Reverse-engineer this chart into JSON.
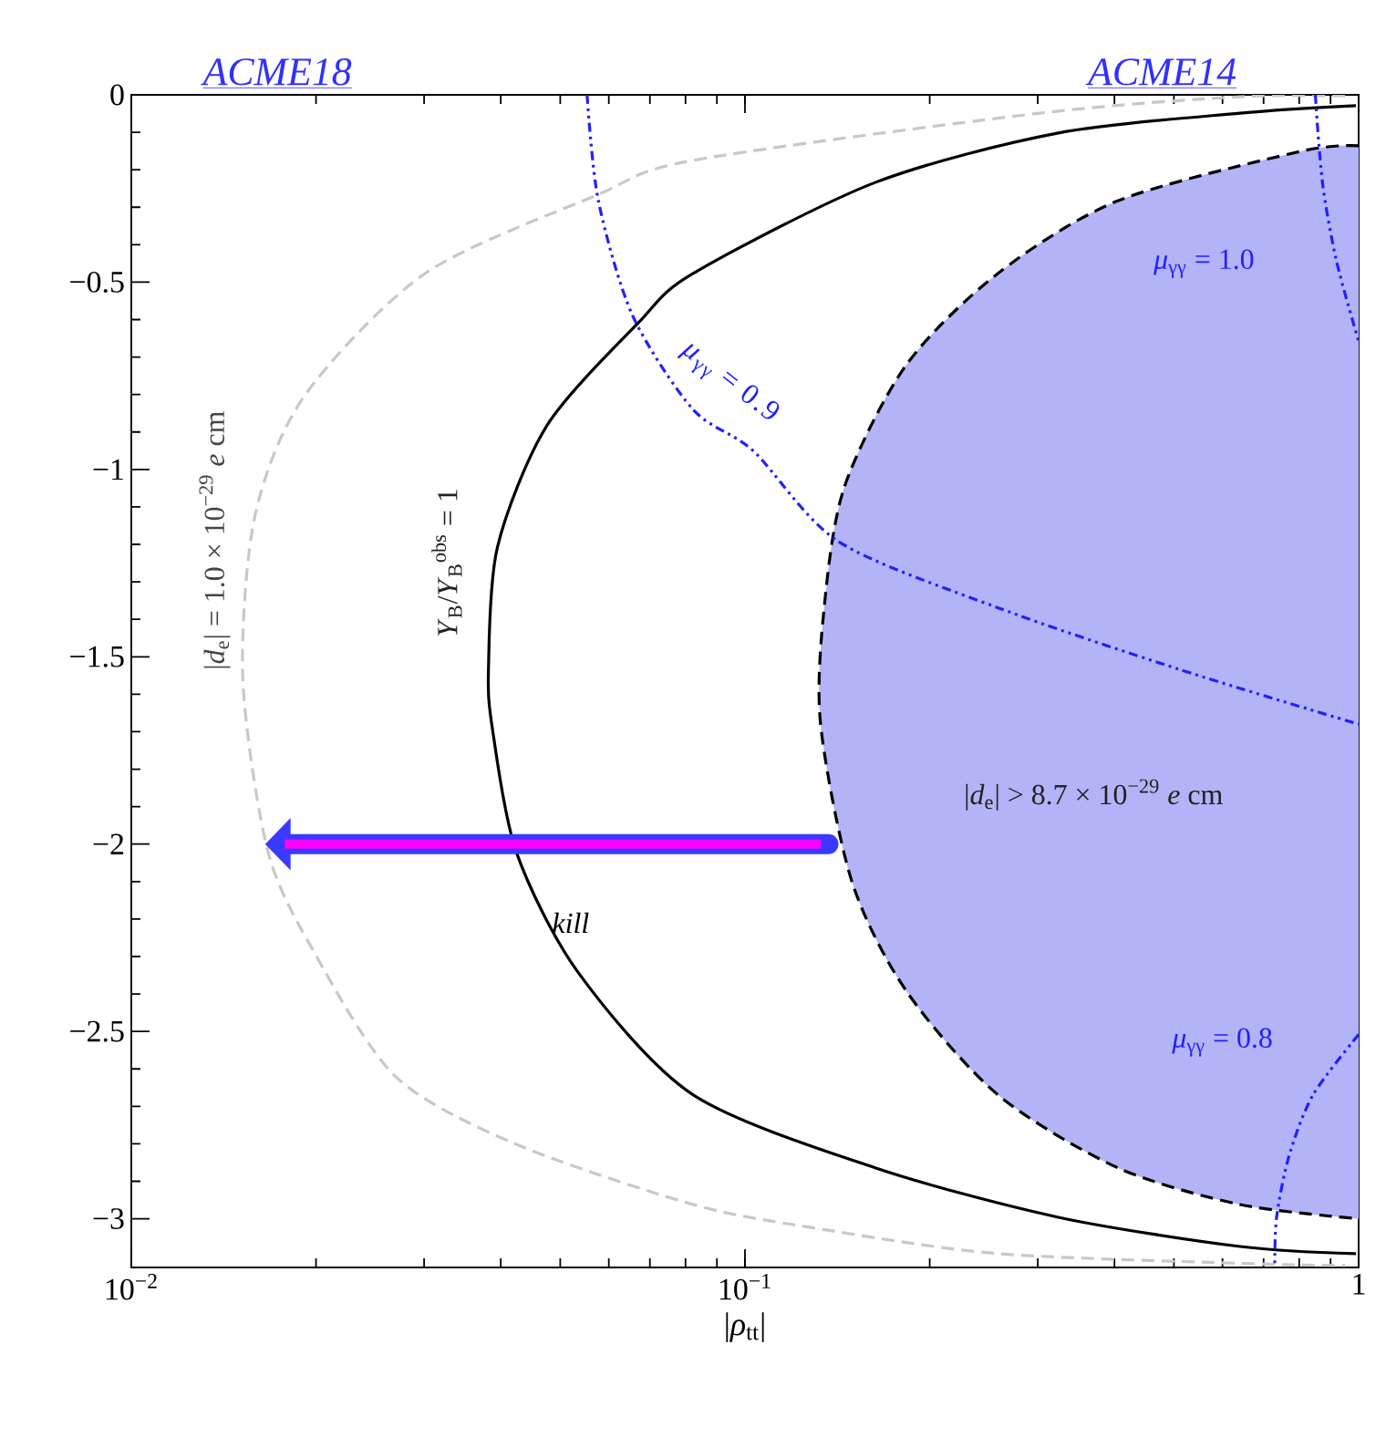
{
  "chart_data": {
    "type": "line",
    "xlabel": "|*ρ*$_{tt}$|",
    "log": "x",
    "xlim": [
      0.01,
      1
    ],
    "ylim": [
      -3.13,
      0
    ],
    "xticks": [
      {
        "value": 0.01,
        "label": "10$^{−2}$"
      },
      {
        "value": 0.1,
        "label": "10$^{−1}$"
      },
      {
        "value": 1,
        "label": "1"
      }
    ],
    "yticks": [
      {
        "value": 0,
        "label": "0"
      },
      {
        "value": -0.5,
        "label": "−0.5"
      },
      {
        "value": -1,
        "label": "−1"
      },
      {
        "value": -1.5,
        "label": "−1.5"
      },
      {
        "value": -2,
        "label": "−2"
      },
      {
        "value": -2.5,
        "label": "−2.5"
      },
      {
        "value": -3,
        "label": "−3"
      }
    ],
    "grid": false,
    "marker": "none",
    "series": [
      {
        "type": "area",
        "color": "#b3b3f7",
        "line_style": "dashed",
        "x": [
          1,
          0.804,
          0.405,
          0.2582,
          0.1832,
          0.1452,
          0.1346,
          0.1328,
          0.1493,
          0.1832,
          0.2582,
          0.405,
          0.641,
          1
        ],
        "values": [
          -0.136,
          -0.151,
          -0.283,
          -0.477,
          -0.721,
          -1.047,
          -1.369,
          -1.68,
          -2.099,
          -2.392,
          -2.669,
          -2.864,
          -2.962,
          -3.0
        ]
      },
      {
        "color": "#c8c8c8",
        "line_style": "dashed",
        "x": [
          0.95,
          0.641,
          0.302,
          0.0823,
          0.0573,
          0.0301,
          0.01915,
          0.0159,
          0.0152,
          0.0167,
          0.01995,
          0.02698,
          0.04236,
          0.0823,
          0.1301,
          0.2582,
          0.673,
          0.95
        ],
        "values": [
          -0.003,
          -0.005,
          -0.049,
          -0.175,
          -0.268,
          -0.477,
          -0.804,
          -1.125,
          -1.56,
          -2.02,
          -2.294,
          -2.621,
          -2.801,
          -2.962,
          -3.025,
          -3.093,
          -3.12,
          -3.125
        ]
      },
      {
        "color": "#000000",
        "line_style": "solid",
        "x": [
          0.99,
          0.641,
          0.324,
          0.163,
          0.0823,
          0.067,
          0.0476,
          0.0395,
          0.0382,
          0.0388,
          0.0424,
          0.0535,
          0.0823,
          0.163,
          0.324,
          0.641,
          0.99
        ],
        "values": [
          -0.029,
          -0.049,
          -0.102,
          -0.234,
          -0.477,
          -0.609,
          -0.882,
          -1.208,
          -1.534,
          -1.695,
          -2.021,
          -2.343,
          -2.669,
          -2.864,
          -2.996,
          -3.074,
          -3.093
        ]
      },
      {
        "color": "#2020ff",
        "line_style": "dotted",
        "x": [
          0.0553,
          0.0577,
          0.0656,
          0.0823,
          0.1031,
          0.1422,
          0.2582,
          0.511,
          1
        ],
        "values": [
          0,
          -0.283,
          -0.589,
          -0.84,
          -0.95,
          -1.193,
          -1.369,
          -1.534,
          -1.68
        ]
      },
      {
        "color": "#2020ff",
        "line_style": "dotted",
        "x": [
          0.85,
          0.873,
          0.92,
          1
        ],
        "values": [
          0,
          -0.234,
          -0.443,
          -0.658
        ]
      },
      {
        "color": "#2020ff",
        "line_style": "dotted",
        "x": [
          1,
          0.843,
          0.771,
          0.735,
          0.73
        ],
        "values": [
          -2.508,
          -2.669,
          -2.83,
          -2.996,
          -3.13
        ]
      }
    ],
    "annotations": [
      "ACME18",
      "ACME14",
      "|*d*$_{e}$| = 1.0 × 10$^{−29}$ *e* cm",
      "*Y*$_{B}$/*Y*$_{B}$$^{obs}$ = 1",
      "*μ*$_{γγ}$ = 0.9",
      "*μ*$_{γγ}$ = 1.0",
      "|*d*$_{e}$| > 8.7 × 10$^{−29}$ *e* cm",
      "*μ*$_{γγ}$ = 0.8",
      "*kill*"
    ]
  }
}
